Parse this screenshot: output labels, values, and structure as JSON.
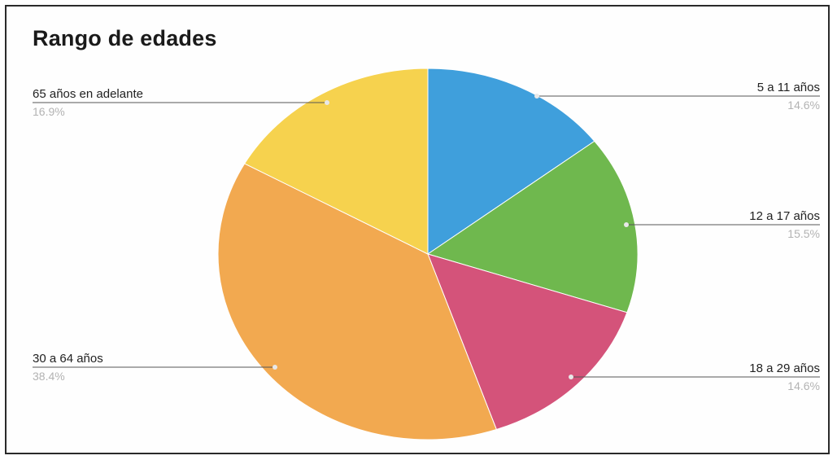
{
  "chart_data": {
    "type": "pie",
    "title": "Rango de edades",
    "slices": [
      {
        "label": "5 a 11 años",
        "value": 14.6,
        "value_label": "14.6%",
        "color": "#3f9fdc"
      },
      {
        "label": "12 a 17 años",
        "value": 15.5,
        "value_label": "15.5%",
        "color": "#6fb84e"
      },
      {
        "label": "18 a 29 años",
        "value": 14.6,
        "value_label": "14.6%",
        "color": "#d4537a"
      },
      {
        "label": "30 a 64 años",
        "value": 38.4,
        "value_label": "38.4%",
        "color": "#f2a950"
      },
      {
        "label": "65 años en adelante",
        "value": 16.9,
        "value_label": "16.9%",
        "color": "#f6d24e"
      }
    ],
    "start_angle_deg": 0,
    "direction": "clockwise",
    "legend": "none"
  }
}
